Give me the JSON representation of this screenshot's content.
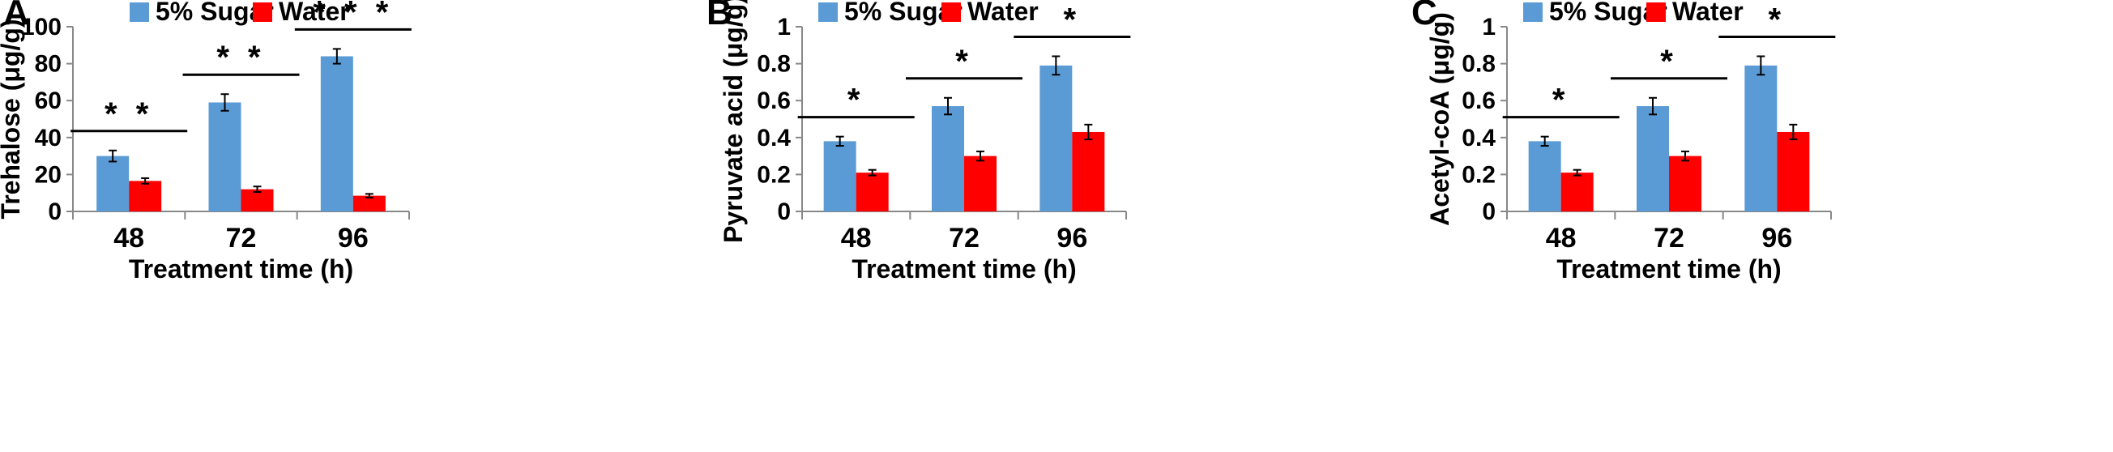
{
  "chart_data": [
    {
      "type": "bar",
      "panel": "A",
      "categories": [
        "48",
        "72",
        "96"
      ],
      "series": [
        {
          "name": "5% Sugar",
          "color": "#5b9bd5",
          "values": [
            30,
            59,
            84
          ],
          "errors": [
            3,
            4.5,
            4
          ]
        },
        {
          "name": "Water",
          "color": "#ff0000",
          "values": [
            16.5,
            12,
            8.5
          ],
          "errors": [
            1.5,
            1.5,
            1
          ]
        }
      ],
      "significance": [
        "* *",
        "* *",
        "* * *"
      ],
      "xlabel": "Treatment time (h)",
      "ylabel": "Trehalose (μg/g)",
      "ylim": [
        0,
        100
      ],
      "yticks": [
        "0",
        "20",
        "40",
        "60",
        "80",
        "100"
      ],
      "yticks_values": [
        0,
        20,
        40,
        60,
        80,
        100
      ],
      "legend": "top"
    },
    {
      "type": "bar",
      "panel": "B",
      "categories": [
        "48",
        "72",
        "96"
      ],
      "series": [
        {
          "name": "5% Sugar",
          "color": "#5b9bd5",
          "values": [
            0.38,
            0.57,
            0.79
          ],
          "errors": [
            0.025,
            0.045,
            0.05
          ]
        },
        {
          "name": "Water",
          "color": "#ff0000",
          "values": [
            0.21,
            0.3,
            0.43
          ],
          "errors": [
            0.015,
            0.025,
            0.04
          ]
        }
      ],
      "significance": [
        "*",
        "*",
        "*"
      ],
      "xlabel": "Treatment time (h)",
      "ylabel": "Pyruvate acid (μg/g)",
      "ylim": [
        0,
        1
      ],
      "yticks": [
        "0",
        "0.2",
        "0.4",
        "0.6",
        "0.8",
        "1"
      ],
      "yticks_values": [
        0,
        0.2,
        0.4,
        0.6,
        0.8,
        1
      ],
      "legend": "top"
    },
    {
      "type": "bar",
      "panel": "C",
      "categories": [
        "48",
        "72",
        "96"
      ],
      "series": [
        {
          "name": "5% Sugar",
          "color": "#5b9bd5",
          "values": [
            0.38,
            0.57,
            0.79
          ],
          "errors": [
            0.025,
            0.045,
            0.05
          ]
        },
        {
          "name": "Water",
          "color": "#ff0000",
          "values": [
            0.21,
            0.3,
            0.43
          ],
          "errors": [
            0.015,
            0.025,
            0.04
          ]
        }
      ],
      "significance": [
        "*",
        "*",
        "*"
      ],
      "xlabel": "Treatment time (h)",
      "ylabel": "Acetyl-coA (μg/g)",
      "ylim": [
        0,
        1
      ],
      "yticks": [
        "0",
        "0.2",
        "0.4",
        "0.6",
        "0.8",
        "1"
      ],
      "yticks_values": [
        0,
        0.2,
        0.4,
        0.6,
        0.8,
        1
      ],
      "legend": "top"
    }
  ]
}
